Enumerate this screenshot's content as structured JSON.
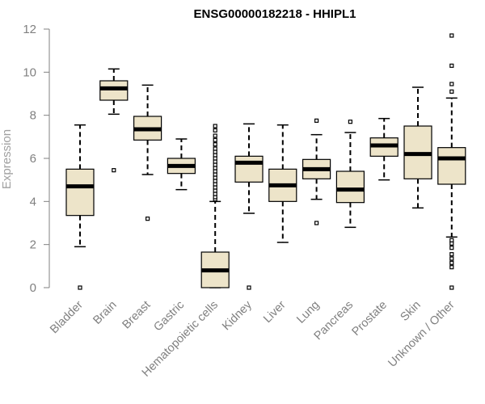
{
  "chart_data": {
    "type": "box",
    "title": "ENSG00000182218 - HHIPL1",
    "xlabel": "",
    "ylabel": "Expression",
    "ylim": [
      0,
      12
    ],
    "yticks": [
      "0",
      "2",
      "4",
      "6",
      "8",
      "10",
      "12"
    ],
    "grid": false,
    "box_fill": "#ede4c9",
    "categories": [
      "Bladder",
      "Brain",
      "Breast",
      "Gastric",
      "Hematopoietic cells",
      "Kidney",
      "Liver",
      "Lung",
      "Pancreas",
      "Prostate",
      "Skin",
      "Unknown / Other"
    ],
    "boxes": [
      {
        "whisker_low": 1.9,
        "q1": 3.35,
        "median": 4.7,
        "q3": 5.5,
        "whisker_high": 7.55,
        "outliers": [
          0.0
        ]
      },
      {
        "whisker_low": 8.05,
        "q1": 8.7,
        "median": 9.25,
        "q3": 9.6,
        "whisker_high": 10.15,
        "outliers": [
          5.45
        ]
      },
      {
        "whisker_low": 5.25,
        "q1": 6.85,
        "median": 7.35,
        "q3": 7.95,
        "whisker_high": 9.4,
        "outliers": [
          3.2
        ]
      },
      {
        "whisker_low": 4.55,
        "q1": 5.3,
        "median": 5.65,
        "q3": 6.0,
        "whisker_high": 6.9,
        "outliers": []
      },
      {
        "whisker_low": 0.0,
        "q1": 0.0,
        "median": 0.8,
        "q3": 1.65,
        "whisker_high": 4.0,
        "outliers": [
          4.1,
          4.2,
          4.35,
          4.5,
          4.65,
          4.8,
          4.95,
          5.1,
          5.25,
          5.4,
          5.55,
          5.7,
          5.85,
          6.0,
          6.15,
          6.3,
          6.45,
          6.65,
          6.85,
          7.05,
          7.3,
          7.5
        ]
      },
      {
        "whisker_low": 3.45,
        "q1": 4.9,
        "median": 5.8,
        "q3": 6.1,
        "whisker_high": 7.6,
        "outliers": [
          0.0
        ]
      },
      {
        "whisker_low": 2.1,
        "q1": 4.0,
        "median": 4.75,
        "q3": 5.5,
        "whisker_high": 7.55,
        "outliers": []
      },
      {
        "whisker_low": 4.1,
        "q1": 5.05,
        "median": 5.5,
        "q3": 5.95,
        "whisker_high": 7.1,
        "outliers": [
          3.0,
          7.75
        ]
      },
      {
        "whisker_low": 2.8,
        "q1": 3.95,
        "median": 4.55,
        "q3": 5.4,
        "whisker_high": 7.2,
        "outliers": [
          7.7
        ]
      },
      {
        "whisker_low": 5.0,
        "q1": 6.1,
        "median": 6.6,
        "q3": 6.95,
        "whisker_high": 7.85,
        "outliers": []
      },
      {
        "whisker_low": 3.7,
        "q1": 5.05,
        "median": 6.2,
        "q3": 7.5,
        "whisker_high": 9.3,
        "outliers": []
      },
      {
        "whisker_low": 2.35,
        "q1": 4.8,
        "median": 6.0,
        "q3": 6.5,
        "whisker_high": 8.8,
        "outliers": [
          0.0,
          0.95,
          1.15,
          1.35,
          1.55,
          1.85,
          2.05,
          2.2,
          9.1,
          9.45,
          10.3,
          11.7
        ]
      }
    ]
  }
}
